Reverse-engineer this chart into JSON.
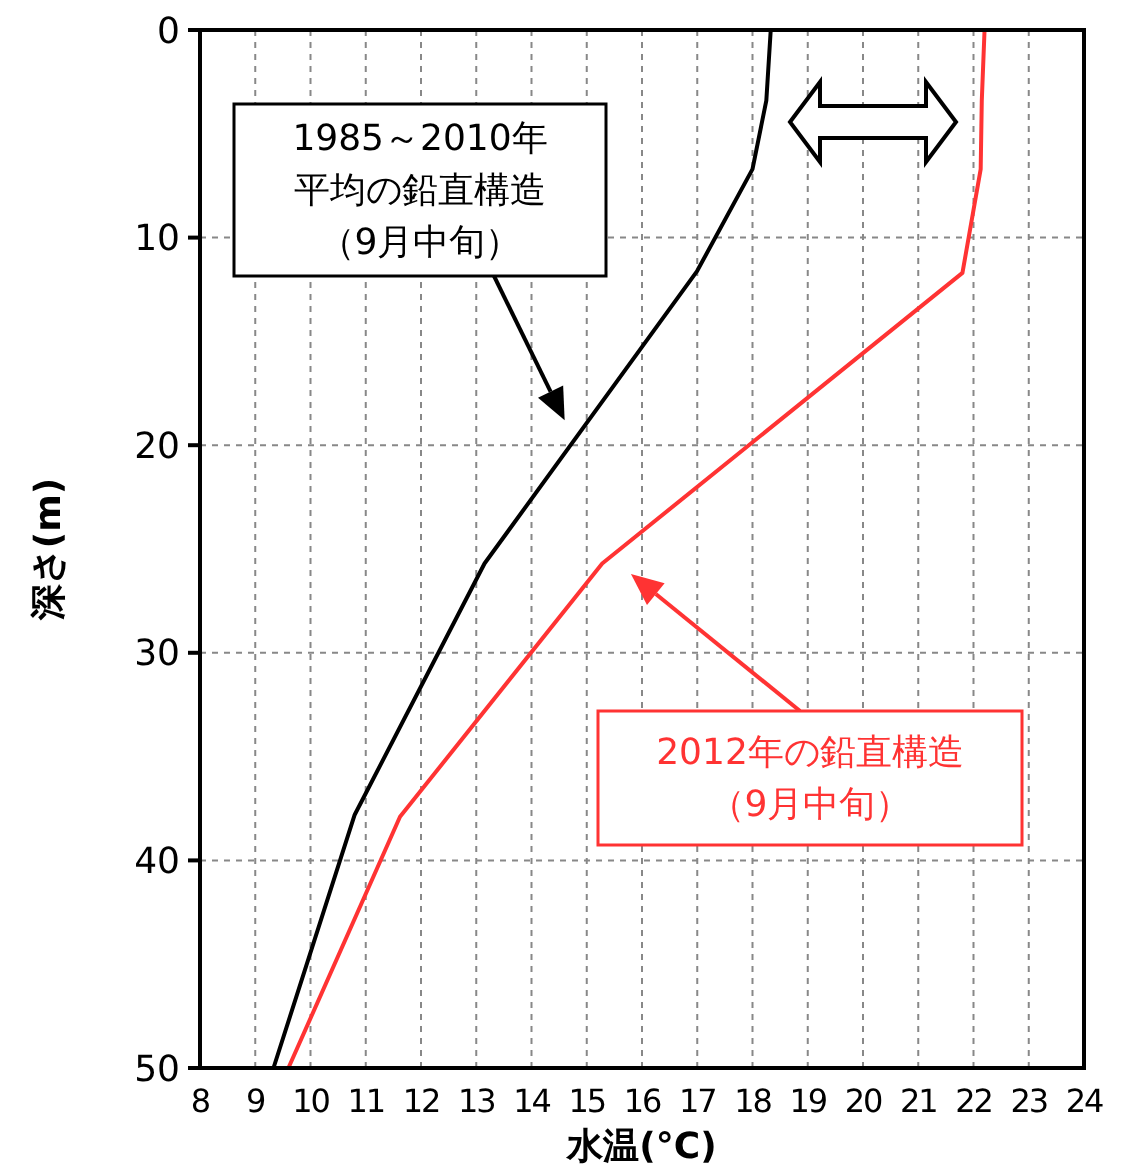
{
  "chart_data": {
    "type": "line",
    "xlabel": "水温(°C)",
    "ylabel": "深さ(m)",
    "xlim": [
      8,
      24
    ],
    "xticks": [
      8,
      9,
      10,
      11,
      12,
      13,
      14,
      15,
      16,
      17,
      18,
      19,
      20,
      21,
      22,
      23,
      24
    ],
    "ylim": [
      50,
      0
    ],
    "yticks": [
      0,
      10,
      20,
      30,
      40,
      50
    ],
    "grid": true,
    "line_style": "solid",
    "marker": "none",
    "series": [
      {
        "color": "#000000",
        "x": [
          18.33,
          18.25,
          18.0,
          17.0,
          13.15,
          10.8,
          9.33
        ],
        "values": [
          0,
          3.4,
          6.7,
          11.6,
          25.7,
          37.8,
          50
        ]
      },
      {
        "color": "#ff3333",
        "x": [
          22.2,
          22.15,
          22.13,
          21.8,
          15.28,
          11.62,
          9.6
        ],
        "values": [
          0,
          3.4,
          6.7,
          11.7,
          25.7,
          37.9,
          50
        ]
      }
    ],
    "annotations": [
      "1985～2010年平均の鉛直構造（9月中旬）",
      "2012年の鉛直構造（9月中旬）"
    ]
  }
}
